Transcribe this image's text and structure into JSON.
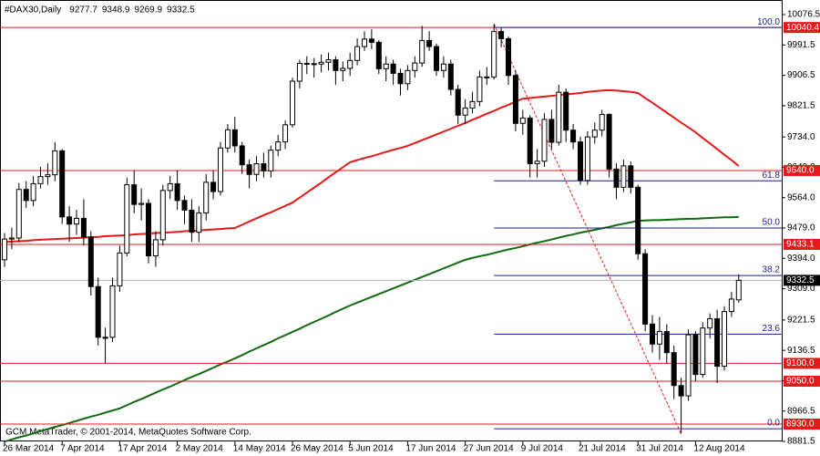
{
  "chart_data": {
    "type": "candlestick",
    "title": "#DAX30,Daily",
    "copyright": "GCM MetaTrader, © 2001-2014, MetaQuotes Software Corp.",
    "categories": [
      "26 Mar 2014",
      null,
      null,
      null,
      null,
      null,
      null,
      null,
      "7 Apr 2014",
      null,
      null,
      null,
      null,
      null,
      null,
      null,
      "17 Apr 2014",
      null,
      null,
      null,
      null,
      null,
      null,
      null,
      "2 May 2014",
      null,
      null,
      null,
      null,
      null,
      null,
      null,
      "14 May 2014",
      null,
      null,
      null,
      null,
      null,
      null,
      null,
      "26 May 2014",
      null,
      null,
      null,
      null,
      null,
      null,
      null,
      "5 Jun 2014",
      null,
      null,
      null,
      null,
      null,
      null,
      null,
      "17 Jun 2014",
      null,
      null,
      null,
      null,
      null,
      null,
      null,
      "27 Jun 2014",
      null,
      null,
      null,
      null,
      null,
      null,
      null,
      "9 Jul 2014",
      null,
      null,
      null,
      null,
      null,
      null,
      null,
      "21 Jul 2014",
      null,
      null,
      null,
      null,
      null,
      null,
      null,
      "31 Jul 2014",
      null,
      null,
      null,
      null,
      null,
      null,
      null,
      "12 Aug 2014",
      null,
      null,
      null,
      null,
      null,
      null
    ],
    "open": [
      9390,
      9448,
      9451,
      9587,
      9556,
      9603,
      9623,
      9628,
      9695,
      9510,
      9490,
      9506,
      9454,
      9315,
      9173,
      9173,
      9317,
      9409,
      9600,
      9545,
      9548,
      9401,
      9446,
      9584,
      9603,
      9556,
      9529,
      9467,
      9521,
      9607,
      9581,
      9703,
      9754,
      9709,
      9656,
      9629,
      9659,
      9639,
      9697,
      9720,
      9768,
      9890,
      9940,
      9939,
      9938,
      9943,
      9950,
      9920,
      9926,
      9948,
      9987,
      10008,
      9999,
      9925,
      9938,
      9912,
      9883,
      9920,
      9941,
      10004,
      9987,
      9920,
      9938,
      9867,
      9795,
      9815,
      9833,
      9902,
      9902,
      10029,
      10009,
      9906,
      9772,
      9787,
      9659,
      9666,
      9783,
      9719,
      9859,
      9753,
      9720,
      9612,
      9734,
      9753,
      9797,
      9644,
      9593,
      9653,
      9593,
      9407,
      9210,
      9154,
      9189,
      9130,
      9038,
      9009,
      9180,
      9069,
      9199,
      9225,
      9092,
      9245,
      9277.7
    ],
    "high": [
      9465,
      9480,
      9605,
      9610,
      9625,
      9650,
      9660,
      9720,
      9700,
      9540,
      9530,
      9560,
      9470,
      9340,
      9200,
      9340,
      9430,
      9620,
      9640,
      9590,
      9560,
      9470,
      9600,
      9625,
      9640,
      9570,
      9560,
      9540,
      9630,
      9640,
      9720,
      9770,
      9790,
      9720,
      9670,
      9680,
      9690,
      9710,
      9740,
      9780,
      9900,
      9950,
      9960,
      9955,
      9965,
      9970,
      9960,
      9945,
      9970,
      10010,
      10030,
      10035,
      10005,
      9960,
      9950,
      9925,
      9935,
      9960,
      10045,
      10030,
      9995,
      9960,
      9950,
      9880,
      9840,
      9860,
      9920,
      9930,
      10050,
      10040,
      10015,
      9920,
      9810,
      9795,
      9700,
      9800,
      9810,
      9880,
      9870,
      9770,
      9735,
      9750,
      9775,
      9810,
      9800,
      9660,
      9670,
      9665,
      9600,
      9420,
      9235,
      9230,
      9210,
      9150,
      9060,
      9195,
      9190,
      9215,
      9240,
      9250,
      9260,
      9300,
      9348.9
    ],
    "low": [
      9370,
      9420,
      9440,
      9535,
      9540,
      9590,
      9600,
      9610,
      9490,
      9440,
      9460,
      9430,
      9290,
      9150,
      9100,
      9160,
      9300,
      9400,
      9520,
      9500,
      9380,
      9370,
      9430,
      9560,
      9530,
      9490,
      9440,
      9440,
      9500,
      9560,
      9570,
      9690,
      9690,
      9630,
      9590,
      9610,
      9620,
      9620,
      9680,
      9700,
      9760,
      9870,
      9910,
      9900,
      9915,
      9920,
      9880,
      9890,
      9905,
      9935,
      9975,
      9980,
      9910,
      9890,
      9880,
      9850,
      9865,
      9900,
      9930,
      9975,
      9905,
      9900,
      9850,
      9770,
      9770,
      9800,
      9820,
      9880,
      9895,
      9985,
      9880,
      9750,
      9740,
      9620,
      9620,
      9650,
      9700,
      9710,
      9720,
      9700,
      9600,
      9600,
      9715,
      9735,
      9620,
      9560,
      9580,
      9575,
      9390,
      9190,
      9130,
      9110,
      9100,
      9000,
      8903,
      8995,
      9050,
      9060,
      9170,
      9045,
      9080,
      9230,
      9269.9
    ],
    "close": [
      9448,
      9451,
      9587,
      9556,
      9603,
      9623,
      9628,
      9695,
      9510,
      9490,
      9506,
      9454,
      9315,
      9173,
      9173,
      9317,
      9409,
      9600,
      9545,
      9548,
      9401,
      9446,
      9584,
      9603,
      9556,
      9529,
      9467,
      9521,
      9607,
      9581,
      9703,
      9754,
      9709,
      9656,
      9629,
      9659,
      9639,
      9697,
      9720,
      9768,
      9890,
      9940,
      9939,
      9938,
      9943,
      9950,
      9920,
      9926,
      9948,
      9987,
      10008,
      9999,
      9925,
      9938,
      9912,
      9883,
      9920,
      9941,
      10004,
      9987,
      9920,
      9938,
      9867,
      9795,
      9815,
      9833,
      9902,
      9902,
      10029,
      10009,
      9906,
      9772,
      9787,
      9659,
      9666,
      9783,
      9719,
      9859,
      9753,
      9720,
      9612,
      9734,
      9753,
      9797,
      9644,
      9593,
      9653,
      9593,
      9407,
      9210,
      9154,
      9189,
      9130,
      9038,
      9009,
      9180,
      9069,
      9199,
      9225,
      9092,
      9245,
      9280,
      9332.5
    ],
    "series": [
      {
        "color": "#e41a1a",
        "values": [
          9440,
          9441,
          9442,
          9443,
          9445,
          9446,
          9447,
          9448,
          9449,
          9450,
          9451,
          9452,
          9453,
          9454,
          9456,
          9457,
          9458,
          9459,
          9461,
          9462,
          9463,
          9465,
          9466,
          9467,
          9468,
          9470,
          9471,
          9472,
          9474,
          9475,
          9476,
          9478,
          9479,
          9488,
          9497,
          9506,
          9515,
          9523,
          9532,
          9541,
          9550,
          9564,
          9578,
          9592,
          9606,
          9621,
          9635,
          9649,
          9663,
          9669,
          9675,
          9680,
          9686,
          9692,
          9698,
          9703,
          9709,
          9717,
          9725,
          9733,
          9741,
          9749,
          9757,
          9765,
          9773,
          9782,
          9790,
          9799,
          9807,
          9816,
          9824,
          9833,
          9841,
          9843,
          9845,
          9847,
          9849,
          9851,
          9853,
          9855,
          9857,
          9860,
          9862,
          9864,
          9865,
          9864,
          9862,
          9860,
          9857,
          9843,
          9830,
          9816,
          9802,
          9788,
          9774,
          9761,
          9747,
          9731,
          9716,
          9700,
          9684,
          9669,
          9653
        ]
      },
      {
        "color": "#0f6a12",
        "values": [
          8881,
          8887,
          8893,
          8898,
          8904,
          8910,
          8916,
          8922,
          8927,
          8933,
          8939,
          8945,
          8951,
          8956,
          8962,
          8968,
          8974,
          8983,
          8992,
          9000,
          9009,
          9018,
          9027,
          9035,
          9044,
          9053,
          9062,
          9070,
          9079,
          9088,
          9097,
          9105,
          9114,
          9123,
          9133,
          9142,
          9151,
          9160,
          9170,
          9179,
          9188,
          9197,
          9207,
          9216,
          9225,
          9234,
          9244,
          9253,
          9262,
          9270,
          9278,
          9286,
          9294,
          9302,
          9310,
          9318,
          9326,
          9334,
          9342,
          9350,
          9358,
          9366,
          9374,
          9382,
          9390,
          9395,
          9400,
          9404,
          9409,
          9414,
          9419,
          9423,
          9428,
          9433,
          9438,
          9442,
          9447,
          9452,
          9457,
          9461,
          9466,
          9470,
          9474,
          9478,
          9482,
          9487,
          9491,
          9495,
          9499,
          9500,
          9501,
          9501,
          9502,
          9503,
          9504,
          9505,
          9505,
          9506,
          9507,
          9508,
          9509,
          9509,
          9510
        ]
      }
    ],
    "levels": [
      {
        "value": 10040.4,
        "label": "10040.4"
      },
      {
        "value": 9640,
        "label": "9640.0"
      },
      {
        "value": 9433.1,
        "label": "9433.1"
      },
      {
        "value": 9100,
        "label": "9100.0"
      },
      {
        "value": 9050,
        "label": "9050.0"
      },
      {
        "value": 8930,
        "label": "8930.0"
      }
    ],
    "level_color": "#e41a1a",
    "fibo": [
      {
        "value": 10040.4,
        "label": "100.0"
      },
      {
        "value": 9611,
        "label": "61.8"
      },
      {
        "value": 9479,
        "label": "50.0"
      },
      {
        "value": 9346,
        "label": "38.2"
      },
      {
        "value": 9182,
        "label": "23.6"
      },
      {
        "value": 8917,
        "label": "0.0"
      }
    ],
    "fibo_color": "#1c1c8c",
    "ylim": [
      8881.5,
      10104.6
    ],
    "yticks": [
      10076.5,
      9991.5,
      9906.5,
      9821.5,
      {
        "value": 9734,
        "label": "9734.0"
      },
      {
        "value": 9649,
        "label": "9649.0"
      },
      {
        "value": 9564,
        "label": "9564.0"
      },
      {
        "value": 9479,
        "label": "9479.0"
      },
      {
        "value": 9394,
        "label": "9394.0"
      },
      {
        "value": 9309,
        "label": "9309.0"
      },
      9221.5,
      9136.5,
      9051.5,
      8966.5,
      8881.5
    ],
    "grid": false
  }
}
